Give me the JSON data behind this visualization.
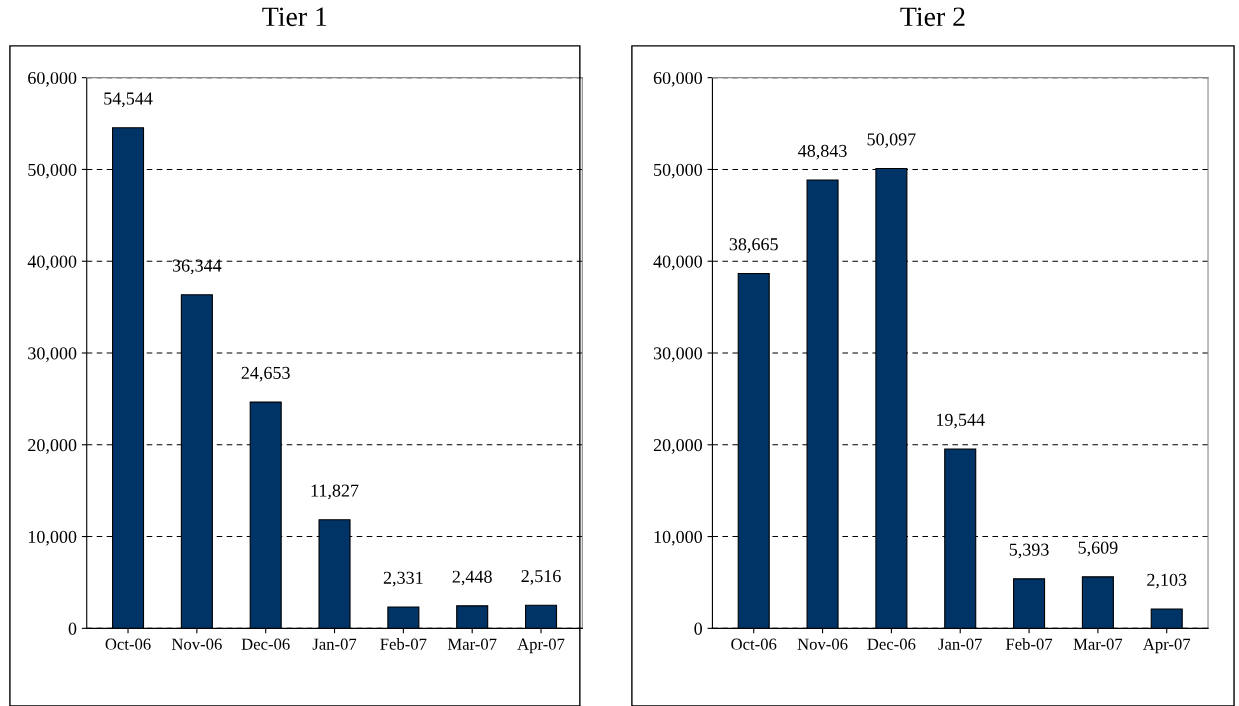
{
  "chart_data": [
    {
      "type": "bar",
      "title": "Tier 1",
      "categories": [
        "Oct-06",
        "Nov-06",
        "Dec-06",
        "Jan-07",
        "Feb-07",
        "Mar-07",
        "Apr-07"
      ],
      "series": [
        {
          "color": "#003366",
          "values": [
            54544,
            36344,
            24653,
            11827,
            2331,
            2448,
            2516
          ],
          "value_labels": [
            "54,544",
            "36,344",
            "24,653",
            "11,827",
            "2,331",
            "2,448",
            "2,516"
          ]
        }
      ],
      "ylim": [
        0,
        60000
      ],
      "yticks": [
        {
          "value": 0,
          "label": "0"
        },
        {
          "value": 10000,
          "label": "10,000"
        },
        {
          "value": 20000,
          "label": "20,000"
        },
        {
          "value": 30000,
          "label": "30,000"
        },
        {
          "value": 40000,
          "label": "40,000"
        },
        {
          "value": 50000,
          "label": "50,000"
        },
        {
          "value": 60000,
          "label": "60,000"
        }
      ],
      "grid": "y"
    },
    {
      "type": "bar",
      "title": "Tier 2",
      "categories": [
        "Oct-06",
        "Nov-06",
        "Dec-06",
        "Jan-07",
        "Feb-07",
        "Mar-07",
        "Apr-07"
      ],
      "series": [
        {
          "color": "#003366",
          "values": [
            38665,
            48843,
            50097,
            19544,
            5393,
            5609,
            2103
          ],
          "value_labels": [
            "38,665",
            "48,843",
            "50,097",
            "19,544",
            "5,393",
            "5,609",
            "2,103"
          ]
        }
      ],
      "ylim": [
        0,
        60000
      ],
      "yticks": [
        {
          "value": 0,
          "label": "0"
        },
        {
          "value": 10000,
          "label": "10,000"
        },
        {
          "value": 20000,
          "label": "20,000"
        },
        {
          "value": 30000,
          "label": "30,000"
        },
        {
          "value": 40000,
          "label": "40,000"
        },
        {
          "value": 50000,
          "label": "50,000"
        },
        {
          "value": 60000,
          "label": "60,000"
        }
      ],
      "grid": "y"
    }
  ]
}
